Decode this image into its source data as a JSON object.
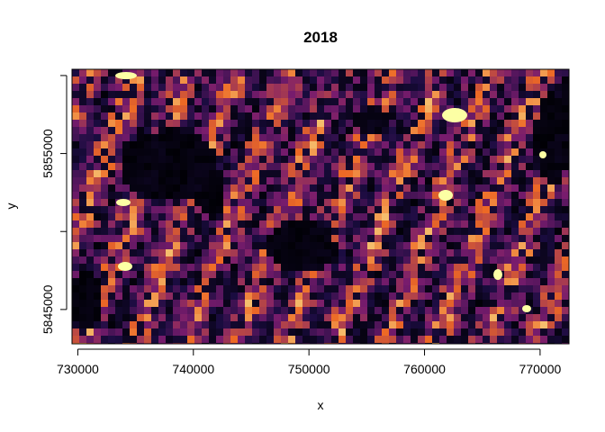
{
  "chart_data": {
    "type": "heatmap",
    "title": "2018",
    "xlabel": "x",
    "ylabel": "y",
    "x_range": [
      729500,
      772500
    ],
    "y_range": [
      5842800,
      5860400
    ],
    "x_ticks": [
      730000,
      740000,
      750000,
      760000,
      770000
    ],
    "x_tick_labels": [
      "730000",
      "740000",
      "750000",
      "760000",
      "770000"
    ],
    "y_ticks": [
      5845000,
      5850000,
      5855000,
      5860000
    ],
    "y_tick_labels": [
      "5845000",
      "",
      "5855000",
      ""
    ],
    "colormap": "inferno",
    "colors": {
      "background": "#000004",
      "low": "#1b0c41",
      "mid": "#781c6d",
      "high": "#ed6925",
      "max": "#fcffa4"
    },
    "grid": false,
    "legend": "none"
  }
}
